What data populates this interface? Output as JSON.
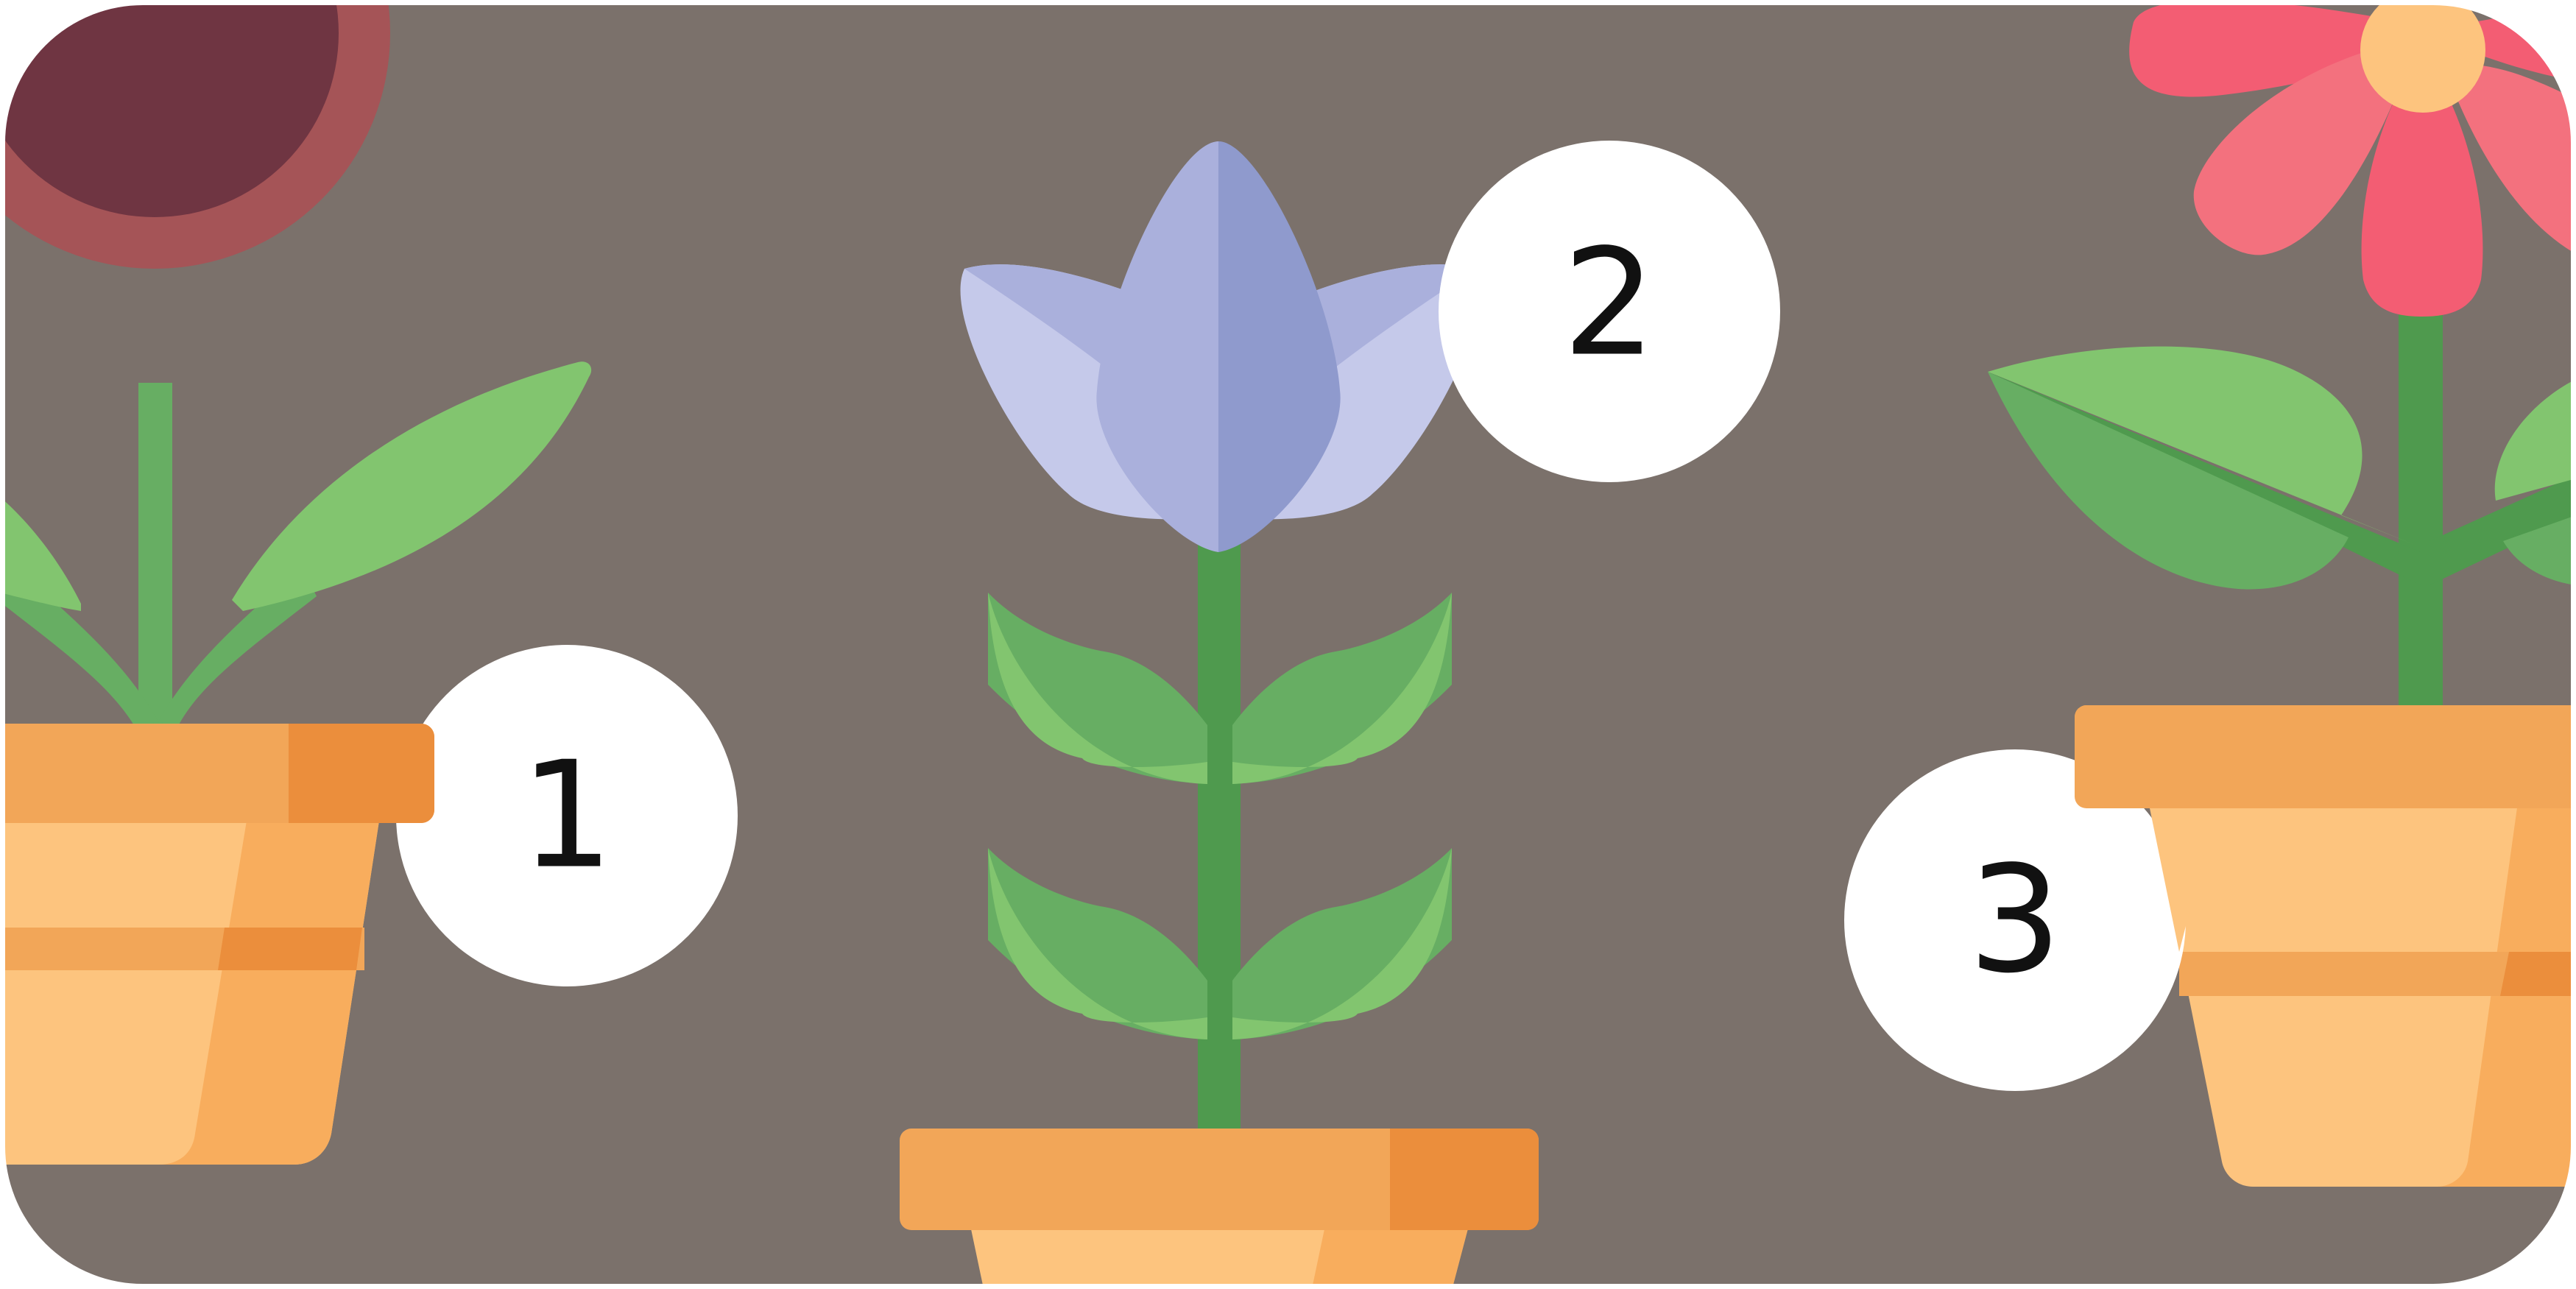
{
  "colors": {
    "background": "#7b716b",
    "circle": "#ffffff",
    "number": "#111111",
    "pot_rim": "#f2a658",
    "pot_rim_shade": "#eb8e3c",
    "pot_body": "#fdc47e",
    "pot_body_shade": "#f8ad5d",
    "pot_band": "#f2a658",
    "stem_light": "#67ae63",
    "stem_dark": "#4f9a4e",
    "leaf_light": "#82c56f",
    "leaf_dark": "#67ae63",
    "sunflower_petal": "#fdcd62",
    "sunflower_petal_shade": "#f9b64f",
    "sunflower_center": "#a55457",
    "sunflower_center_dark": "#6f3542",
    "bell_light": "#c5c9ea",
    "bell_mid": "#aab0dc",
    "bell_dark": "#8f9acd",
    "pink_petal": "#f35d73",
    "pink_petal_light": "#f3717e",
    "pink_center": "#fdc47e"
  },
  "flowers": [
    {
      "name": "sunflower",
      "label": "1"
    },
    {
      "name": "bellflower",
      "label": "2"
    },
    {
      "name": "daisy",
      "label": "3"
    }
  ]
}
